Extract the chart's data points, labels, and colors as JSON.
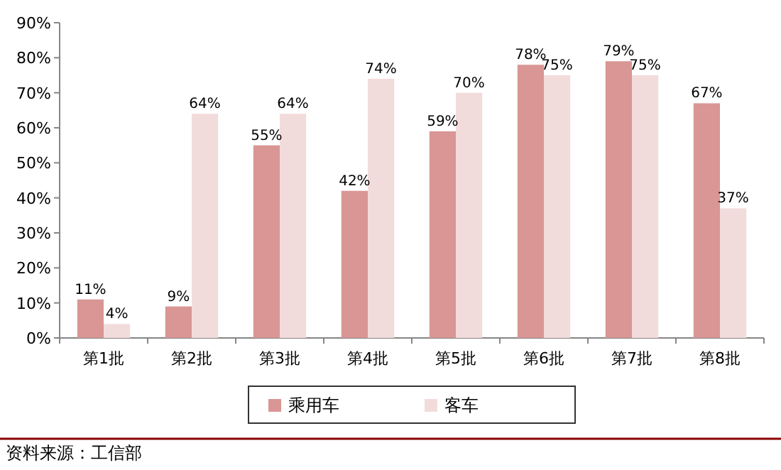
{
  "chart_data": {
    "type": "bar",
    "categories": [
      "第1批",
      "第2批",
      "第3批",
      "第4批",
      "第5批",
      "第6批",
      "第7批",
      "第8批"
    ],
    "series": [
      {
        "name": "乘用车",
        "color": "#d99694",
        "values": [
          11,
          9,
          55,
          42,
          59,
          78,
          79,
          67
        ],
        "value_labels": [
          "11%",
          "9%",
          "55%",
          "42%",
          "59%",
          "78%",
          "79%",
          "67%"
        ]
      },
      {
        "name": "客车",
        "color": "#f2dcdb",
        "values": [
          4,
          64,
          64,
          74,
          70,
          75,
          75,
          37
        ],
        "value_labels": [
          "4%",
          "64%",
          "64%",
          "74%",
          "70%",
          "75%",
          "75%",
          "37%"
        ]
      }
    ],
    "ylim": [
      0,
      90
    ],
    "yticks": [
      {
        "value": 0,
        "label": "0%"
      },
      {
        "value": 10,
        "label": "10%"
      },
      {
        "value": 20,
        "label": "20%"
      },
      {
        "value": 30,
        "label": "30%"
      },
      {
        "value": 40,
        "label": "40%"
      },
      {
        "value": 50,
        "label": "50%"
      },
      {
        "value": 60,
        "label": "60%"
      },
      {
        "value": 70,
        "label": "70%"
      },
      {
        "value": 80,
        "label": "80%"
      },
      {
        "value": 90,
        "label": "90%"
      }
    ],
    "grid": false,
    "legend": "bottom",
    "annotations": [
      "资料来源：工信部"
    ]
  }
}
